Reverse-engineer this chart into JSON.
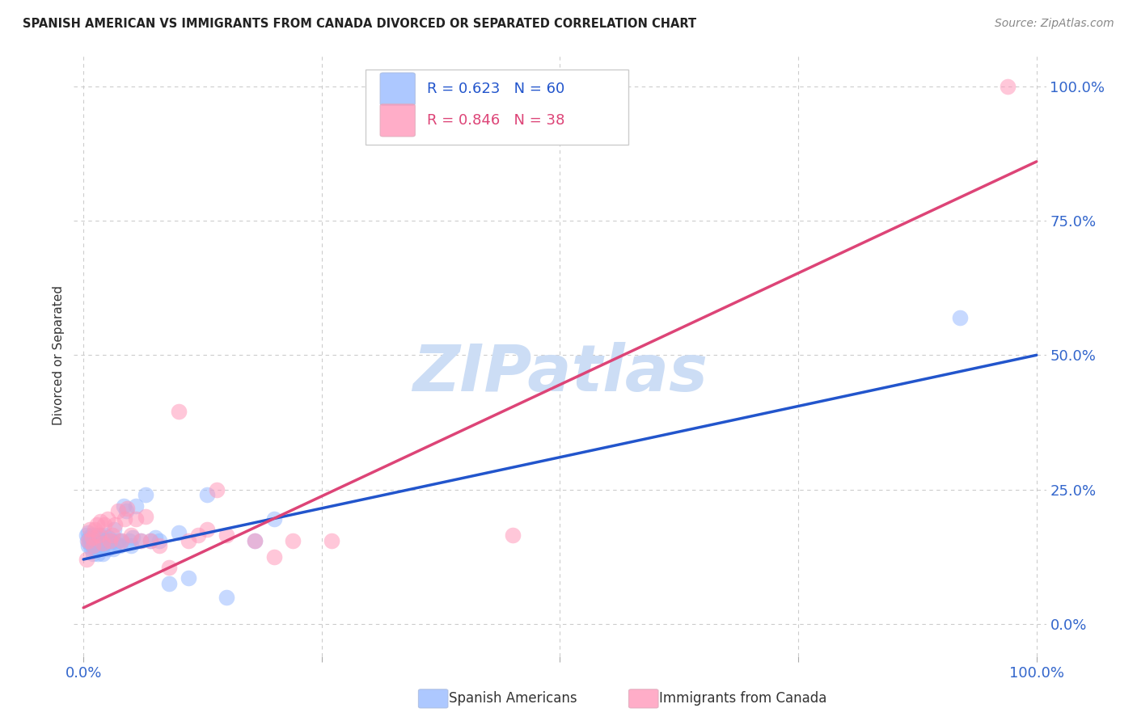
{
  "title": "SPANISH AMERICAN VS IMMIGRANTS FROM CANADA DIVORCED OR SEPARATED CORRELATION CHART",
  "source": "Source: ZipAtlas.com",
  "ylabel": "Divorced or Separated",
  "blue_R": 0.623,
  "blue_N": 60,
  "pink_R": 0.846,
  "pink_N": 38,
  "blue_color": "#99bbff",
  "pink_color": "#ff99bb",
  "blue_line_color": "#2255cc",
  "pink_line_color": "#dd4477",
  "blue_scatter_x": [
    0.003,
    0.004,
    0.005,
    0.005,
    0.006,
    0.007,
    0.007,
    0.008,
    0.008,
    0.009,
    0.009,
    0.01,
    0.01,
    0.01,
    0.012,
    0.012,
    0.013,
    0.013,
    0.014,
    0.015,
    0.015,
    0.016,
    0.017,
    0.018,
    0.018,
    0.019,
    0.02,
    0.02,
    0.021,
    0.022,
    0.023,
    0.025,
    0.026,
    0.028,
    0.03,
    0.031,
    0.032,
    0.034,
    0.036,
    0.038,
    0.04,
    0.042,
    0.045,
    0.048,
    0.05,
    0.052,
    0.055,
    0.06,
    0.065,
    0.07,
    0.075,
    0.08,
    0.09,
    0.1,
    0.11,
    0.13,
    0.15,
    0.18,
    0.92,
    0.2
  ],
  "blue_scatter_y": [
    0.165,
    0.155,
    0.145,
    0.17,
    0.16,
    0.15,
    0.155,
    0.14,
    0.165,
    0.15,
    0.16,
    0.13,
    0.145,
    0.155,
    0.14,
    0.165,
    0.15,
    0.16,
    0.155,
    0.13,
    0.15,
    0.145,
    0.155,
    0.15,
    0.165,
    0.16,
    0.13,
    0.145,
    0.155,
    0.165,
    0.15,
    0.14,
    0.16,
    0.155,
    0.155,
    0.14,
    0.175,
    0.15,
    0.155,
    0.145,
    0.155,
    0.22,
    0.21,
    0.155,
    0.145,
    0.16,
    0.22,
    0.155,
    0.24,
    0.155,
    0.16,
    0.155,
    0.075,
    0.17,
    0.085,
    0.24,
    0.05,
    0.155,
    0.57,
    0.195
  ],
  "pink_scatter_x": [
    0.003,
    0.005,
    0.007,
    0.009,
    0.01,
    0.012,
    0.014,
    0.016,
    0.018,
    0.02,
    0.022,
    0.025,
    0.028,
    0.03,
    0.033,
    0.036,
    0.04,
    0.043,
    0.046,
    0.05,
    0.055,
    0.06,
    0.065,
    0.07,
    0.08,
    0.09,
    0.1,
    0.11,
    0.12,
    0.13,
    0.14,
    0.15,
    0.18,
    0.2,
    0.22,
    0.26,
    0.45,
    0.97
  ],
  "pink_scatter_y": [
    0.12,
    0.155,
    0.175,
    0.16,
    0.145,
    0.175,
    0.185,
    0.165,
    0.19,
    0.15,
    0.185,
    0.195,
    0.155,
    0.165,
    0.185,
    0.21,
    0.155,
    0.195,
    0.215,
    0.165,
    0.195,
    0.155,
    0.2,
    0.155,
    0.145,
    0.105,
    0.395,
    0.155,
    0.165,
    0.175,
    0.25,
    0.165,
    0.155,
    0.125,
    0.155,
    0.155,
    0.165,
    1.0
  ],
  "blue_line_x": [
    0.0,
    1.0
  ],
  "blue_line_y": [
    0.12,
    0.5
  ],
  "pink_line_x": [
    0.0,
    1.0
  ],
  "pink_line_y": [
    0.03,
    0.86
  ],
  "xlim": [
    -0.01,
    1.01
  ],
  "ylim": [
    -0.06,
    1.06
  ],
  "ytick_positions": [
    0.0,
    0.25,
    0.5,
    0.75,
    1.0
  ],
  "ytick_labels": [
    "0.0%",
    "25.0%",
    "50.0%",
    "75.0%",
    "100.0%"
  ],
  "xtick_positions": [
    0.0,
    0.25,
    0.5,
    0.75,
    1.0
  ],
  "xtick_show_labels": [
    true,
    false,
    false,
    false,
    true
  ],
  "xtick_label_values": [
    "0.0%",
    "",
    "",
    "",
    "100.0%"
  ],
  "watermark_text": "ZIPatlas",
  "watermark_color": "#ccddf5",
  "grid_color": "#cccccc",
  "tick_label_color": "#3366cc",
  "axis_label_color": "#333333",
  "background": "#ffffff"
}
